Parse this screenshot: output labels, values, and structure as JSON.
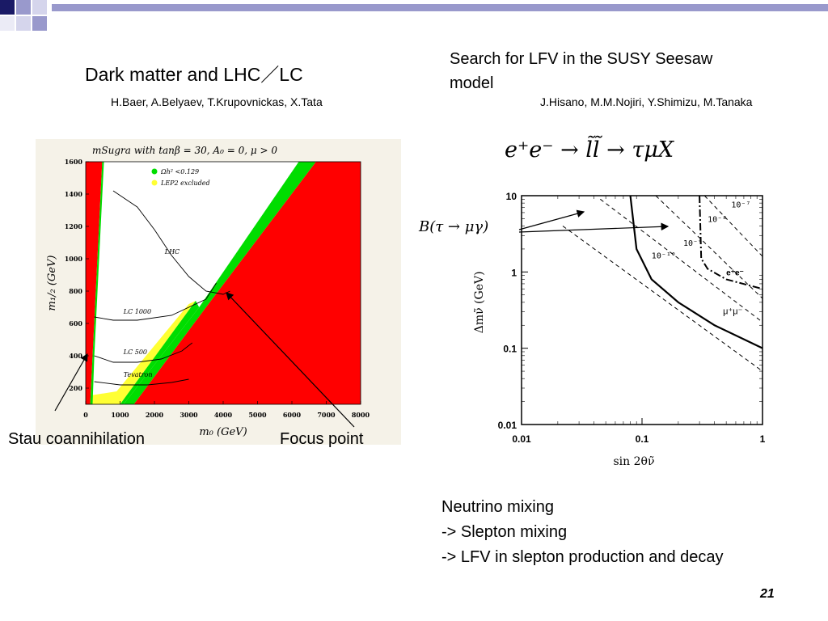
{
  "slide": {
    "left_title": "Dark matter and LHC／LC",
    "left_authors": "H.Baer,  A.Belyaev, T.Krupovnickas, X.Tata",
    "right_title_line1": "Search for LFV in the SUSY Seesaw",
    "right_title_line2": "model",
    "right_authors": "J.Hisano, M.M.Nojiri, Y.Shimizu, M.Tanaka",
    "reaction_lhs": "e⁺e⁻",
    "reaction_arrow": "→",
    "reaction_mid": "l̃l̃",
    "reaction_rhs": "τμX",
    "branching_label": "B(τ → μγ)",
    "label_stau": "Stau coannihilation",
    "label_focus": "Focus point",
    "notes": [
      "Neutrino mixing",
      "-> Slepton mixing",
      "-> LFV in slepton production and decay"
    ],
    "page_number": "21"
  },
  "colors": {
    "accent_square": "#9999cc",
    "excluded_red": "#ff0000",
    "relic_green": "#00dd00",
    "lep2_yellow": "#ffff33"
  },
  "chart_data": [
    {
      "type": "line",
      "title": "mSugra with tanβ = 30, A₀ = 0, μ > 0",
      "xlabel": "m₀ (GeV)",
      "ylabel": "m₁/₂ (GeV)",
      "xlim": [
        0,
        8000
      ],
      "ylim": [
        100,
        1600
      ],
      "x_ticks": [
        0,
        1000,
        2000,
        3000,
        4000,
        5000,
        6000,
        7000,
        8000
      ],
      "y_ticks": [
        200,
        400,
        600,
        800,
        1000,
        1200,
        1400,
        1600
      ],
      "legend": [
        {
          "label": "Ωh² <0.129",
          "color": "#00dd00"
        },
        {
          "label": "LEP2 excluded",
          "color": "#ffff33"
        }
      ],
      "series": [
        {
          "name": "LHC",
          "x": [
            800,
            1500,
            2000,
            2500,
            3000,
            3500,
            4000,
            4200
          ],
          "y": [
            1420,
            1320,
            1180,
            1020,
            890,
            800,
            780,
            800
          ]
        },
        {
          "name": "LC 1000",
          "x": [
            250,
            800,
            1500,
            2500,
            3500,
            3800
          ],
          "y": [
            640,
            620,
            620,
            650,
            750,
            850
          ]
        },
        {
          "name": "LC 500",
          "x": [
            250,
            800,
            1500,
            2200,
            2800,
            3100
          ],
          "y": [
            400,
            360,
            360,
            380,
            430,
            480
          ]
        },
        {
          "name": "Tevatron",
          "x": [
            250,
            1000,
            1800,
            2500,
            3000
          ],
          "y": [
            240,
            220,
            220,
            235,
            255
          ]
        }
      ]
    },
    {
      "type": "line",
      "xlabel": "sin 2θν̃",
      "ylabel": "Δmν̃ (GeV)",
      "x_scale": "log",
      "y_scale": "log",
      "xlim": [
        0.01,
        1
      ],
      "ylim": [
        0.01,
        10
      ],
      "x_ticks": [
        "0.01",
        "0.1",
        "1"
      ],
      "y_ticks": [
        "0.01",
        "0.1",
        "1",
        "10"
      ],
      "contour_labels": [
        "10⁻⁷",
        "10⁻⁸",
        "10⁻⁹",
        "10⁻¹⁰"
      ],
      "curve_labels": [
        "e⁺e⁻",
        "μ⁺μ⁻"
      ],
      "series": [
        {
          "name": "μ⁺μ⁻",
          "x": [
            0.08,
            0.09,
            0.12,
            0.2,
            0.4,
            1.0
          ],
          "y": [
            10,
            2.0,
            0.8,
            0.4,
            0.2,
            0.1
          ]
        },
        {
          "name": "e⁺e⁻",
          "x": [
            0.3,
            0.31,
            0.35,
            0.5,
            1.0
          ],
          "y": [
            10,
            1.5,
            1.1,
            0.8,
            0.6
          ]
        }
      ]
    }
  ]
}
